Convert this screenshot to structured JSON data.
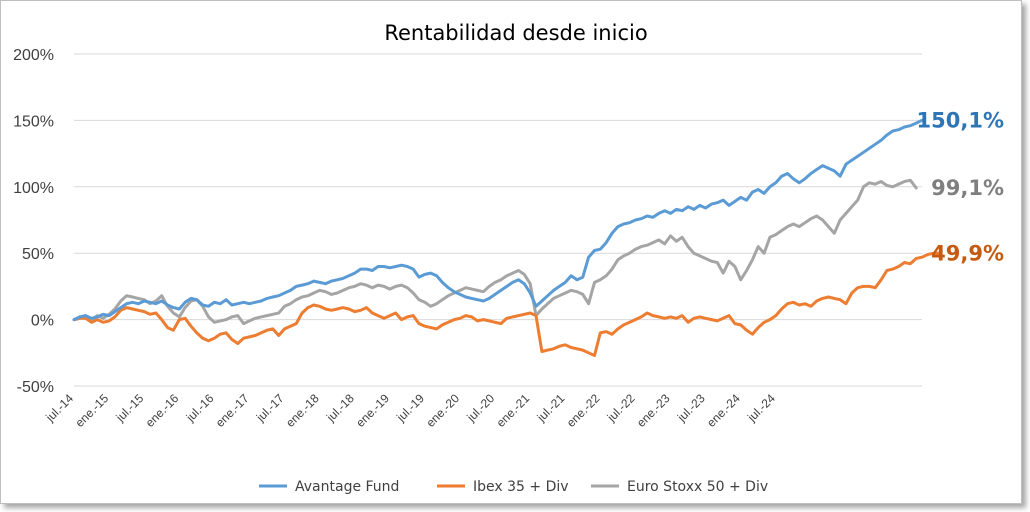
{
  "chart_data": {
    "type": "line",
    "title": "Rentabilidad desde inicio",
    "xlabel": "",
    "ylabel": "",
    "ylim": [
      -50,
      200
    ],
    "y_ticks": [
      {
        "value": -50,
        "label": "-50%"
      },
      {
        "value": 0,
        "label": "0%"
      },
      {
        "value": 50,
        "label": "50%"
      },
      {
        "value": 100,
        "label": "100%"
      },
      {
        "value": 150,
        "label": "150%"
      },
      {
        "value": 200,
        "label": "200%"
      }
    ],
    "x_tick_labels": [
      "jul.-14",
      "ene.-15",
      "jul.-15",
      "ene.-16",
      "jul.-16",
      "ene.-17",
      "jul.-17",
      "ene.-18",
      "jul.-18",
      "ene.-19",
      "jul.-19",
      "ene.-20",
      "jul.-20",
      "ene.-21",
      "jul.-21",
      "ene.-22",
      "jul.-22",
      "ene.-23",
      "jul.-23",
      "ene.-24",
      "jul.-24"
    ],
    "x_start": "jul.-14",
    "x_end": "dic.-24",
    "grid": "horizontal",
    "legend_position": "bottom",
    "series": [
      {
        "name": "Avantage Fund",
        "color": "#5b9bd5",
        "label_color": "#2e75b6",
        "end_label": "150,1%",
        "values": [
          0,
          2,
          3,
          1,
          2,
          4,
          3,
          6,
          9,
          12,
          13,
          12,
          14,
          13,
          12,
          14,
          11,
          9,
          8,
          13,
          16,
          15,
          11,
          10,
          13,
          12,
          15,
          11,
          12,
          13,
          12,
          13,
          14,
          16,
          17,
          18,
          20,
          22,
          25,
          26,
          27,
          29,
          28,
          27,
          29,
          30,
          31,
          33,
          35,
          38,
          38,
          37,
          40,
          40,
          39,
          40,
          41,
          40,
          38,
          32,
          34,
          35,
          33,
          28,
          24,
          21,
          19,
          17,
          16,
          15,
          14,
          16,
          19,
          22,
          25,
          28,
          30,
          27,
          20,
          10,
          14,
          18,
          22,
          25,
          28,
          33,
          30,
          32,
          47,
          52,
          53,
          58,
          65,
          70,
          72,
          73,
          75,
          76,
          78,
          77,
          80,
          82,
          80,
          83,
          82,
          85,
          83,
          86,
          84,
          87,
          88,
          90,
          86,
          89,
          92,
          90,
          96,
          98,
          95,
          100,
          103,
          108,
          110,
          106,
          103,
          106,
          110,
          113,
          116,
          114,
          112,
          108,
          117,
          120,
          123,
          126,
          129,
          132,
          135,
          139,
          142,
          143,
          145,
          146,
          148,
          150.1
        ]
      },
      {
        "name": "Ibex 35 + Div",
        "color": "#ed7d31",
        "label_color": "#c55a11",
        "end_label": "49,9%",
        "values": [
          0,
          1,
          1,
          -2,
          0,
          -2,
          -1,
          2,
          7,
          9,
          8,
          7,
          6,
          4,
          5,
          0,
          -6,
          -8,
          0,
          1,
          -5,
          -10,
          -14,
          -16,
          -14,
          -11,
          -10,
          -15,
          -18,
          -14,
          -13,
          -12,
          -10,
          -8,
          -7,
          -12,
          -7,
          -5,
          -3,
          5,
          9,
          11,
          10,
          8,
          7,
          8,
          9,
          8,
          6,
          7,
          9,
          5,
          3,
          1,
          3,
          5,
          0,
          2,
          3,
          -3,
          -5,
          -6,
          -7,
          -4,
          -2,
          0,
          1,
          3,
          2,
          -1,
          0,
          -1,
          -2,
          -3,
          1,
          2,
          3,
          4,
          5,
          3,
          -24,
          -23,
          -22,
          -20,
          -19,
          -21,
          -22,
          -23,
          -25,
          -27,
          -10,
          -9,
          -11,
          -7,
          -4,
          -2,
          0,
          2,
          5,
          3,
          2,
          1,
          2,
          1,
          3,
          -2,
          1,
          2,
          1,
          0,
          -1,
          1,
          3,
          -3,
          -4,
          -8,
          -11,
          -6,
          -2,
          0,
          3,
          8,
          12,
          13,
          11,
          12,
          10,
          14,
          16,
          17,
          16,
          15,
          12,
          20,
          24,
          25,
          25,
          24,
          30,
          37,
          38,
          40,
          43,
          42,
          46,
          47,
          49,
          50,
          49.9
        ]
      },
      {
        "name": "Euro Stoxx 50 + Div",
        "color": "#a5a5a5",
        "label_color": "#7f7f7f",
        "end_label": "99,1%",
        "values": [
          0,
          1,
          2,
          0,
          3,
          1,
          4,
          8,
          14,
          18,
          17,
          16,
          15,
          12,
          14,
          18,
          10,
          5,
          2,
          9,
          14,
          15,
          10,
          2,
          -2,
          -1,
          0,
          2,
          3,
          -3,
          -1,
          1,
          2,
          3,
          4,
          5,
          10,
          12,
          15,
          17,
          18,
          20,
          22,
          21,
          19,
          20,
          22,
          24,
          25,
          27,
          26,
          24,
          26,
          25,
          23,
          25,
          26,
          24,
          20,
          15,
          13,
          10,
          12,
          15,
          18,
          20,
          22,
          24,
          23,
          22,
          21,
          25,
          28,
          30,
          33,
          35,
          37,
          34,
          27,
          3,
          8,
          12,
          16,
          18,
          20,
          22,
          21,
          19,
          12,
          28,
          30,
          33,
          38,
          45,
          48,
          50,
          53,
          55,
          56,
          58,
          60,
          57,
          63,
          59,
          62,
          55,
          50,
          48,
          46,
          44,
          43,
          35,
          44,
          40,
          30,
          37,
          45,
          55,
          50,
          62,
          64,
          67,
          70,
          72,
          70,
          73,
          76,
          78,
          75,
          70,
          65,
          75,
          80,
          85,
          90,
          100,
          103,
          102,
          104,
          101,
          100,
          102,
          104,
          105,
          99.1
        ]
      }
    ]
  }
}
